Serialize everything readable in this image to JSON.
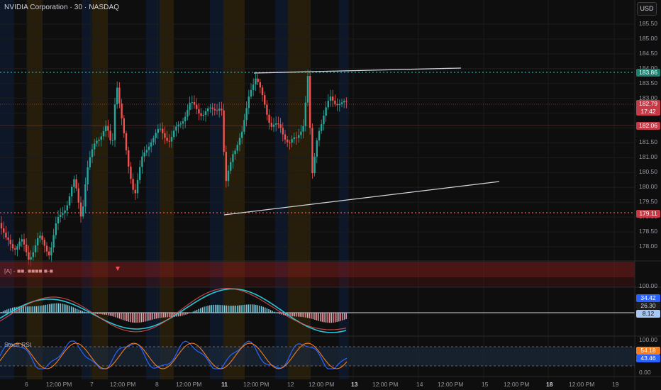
{
  "header": {
    "title": "NVIDIA Corporation · 30 · NASDAQ",
    "currency_button": "USD"
  },
  "price_axis": {
    "ticks": [
      "185.50",
      "185.00",
      "184.50",
      "184.00",
      "183.50",
      "183.00",
      "182.50",
      "182.00",
      "181.50",
      "181.00",
      "180.50",
      "180.00",
      "179.50",
      "179.00",
      "178.50",
      "178.00"
    ],
    "tags": {
      "resistance": {
        "value": "183.86",
        "color": "#1a7f6e"
      },
      "last_price": {
        "value": "182.79",
        "countdown": "17:42",
        "color": "#c53a46"
      },
      "level_mid": {
        "value": "182.06",
        "color": "#c53a46"
      },
      "support": {
        "value": "179.11",
        "color": "#c53a46"
      }
    }
  },
  "time_axis": {
    "labels": [
      "6",
      "12:00 PM",
      "7",
      "12:00 PM",
      "8",
      "12:00 PM",
      "11",
      "12:00 PM",
      "12",
      "12:00 PM",
      "13",
      "12:00 PM",
      "14",
      "12:00 PM",
      "15",
      "12:00 PM",
      "18",
      "12:00 PM",
      "19"
    ],
    "bold_labels": [
      "11",
      "13",
      "18"
    ]
  },
  "indicators": {
    "signal_pane": {
      "label": "[A] - ■■. ■■■■ ■-■"
    },
    "macd_pane": {
      "axis": [
        "100.00"
      ],
      "tags": [
        {
          "value": "34.42",
          "color": "#2962ff"
        },
        {
          "value": "26.30",
          "color": "#1e1e1e"
        },
        {
          "value": "8.12",
          "color": "#a7c7f5"
        }
      ]
    },
    "stoch_rsi": {
      "label": "Stoch RSI",
      "axis": [
        "100.00",
        "0.00"
      ],
      "tags": [
        {
          "value": "54.18",
          "color": "#f57c1f"
        },
        {
          "value": "43.46",
          "color": "#2962ff"
        }
      ]
    }
  },
  "colors": {
    "up": "#26a69a",
    "down": "#ef5350",
    "trendline": "#d1d4dc",
    "bg": "#0e0e0e"
  }
}
